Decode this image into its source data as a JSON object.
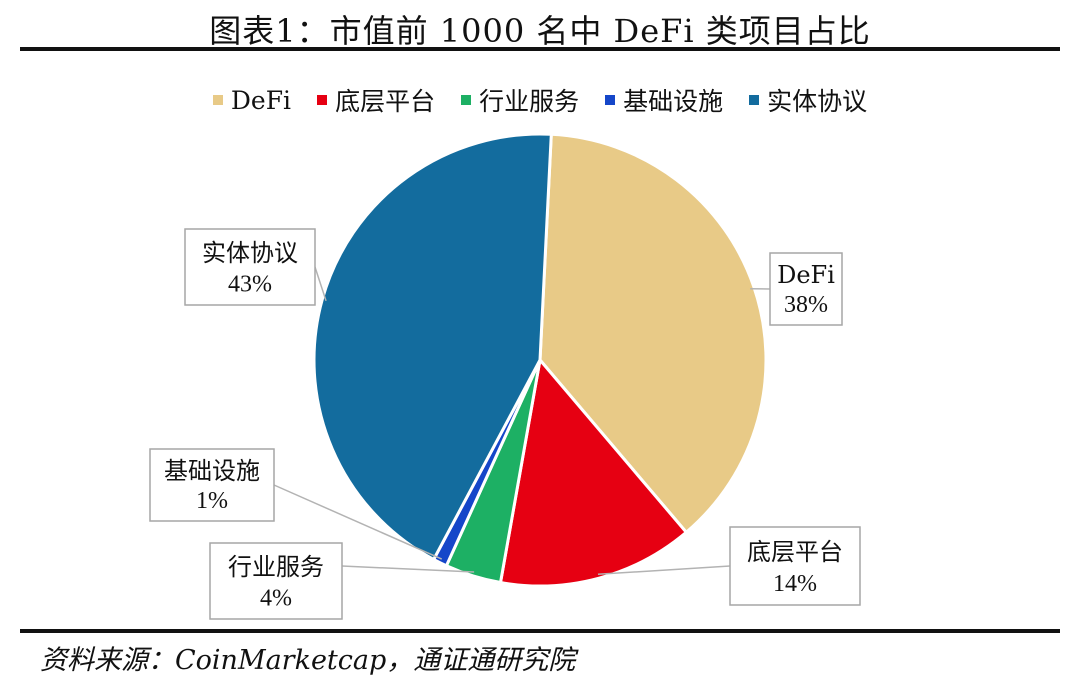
{
  "title": "图表1：市值前 1000 名中 DeFi 类项目占比",
  "source": "资料来源：CoinMarketcap，通证通研究院",
  "chart_data": {
    "type": "pie",
    "categories": [
      "DeFi",
      "底层平台",
      "行业服务",
      "基础设施",
      "实体协议"
    ],
    "values": [
      38,
      14,
      4,
      1,
      43
    ],
    "labels": [
      "38%",
      "14%",
      "4%",
      "1%",
      "43%"
    ],
    "colors": [
      "#E8CA87",
      "#E60012",
      "#1DB064",
      "#1546C9",
      "#136C9E"
    ],
    "legend_position": "top"
  }
}
